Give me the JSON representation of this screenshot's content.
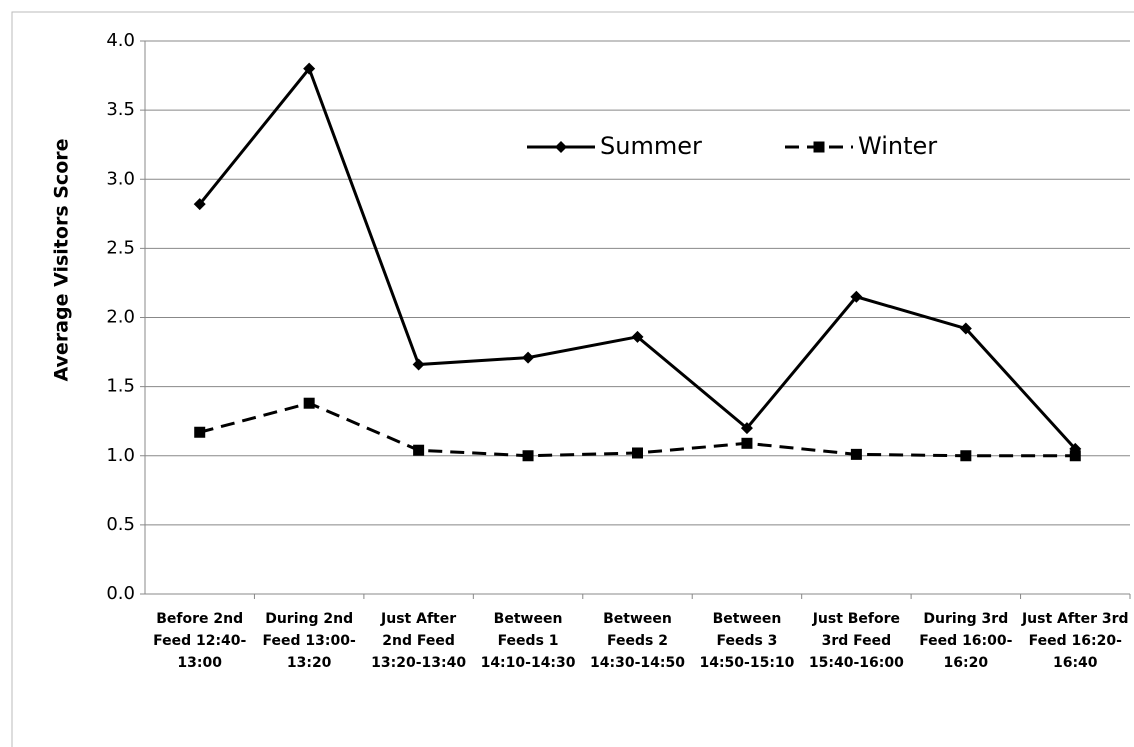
{
  "chart_data": {
    "type": "line",
    "y_label": "Average Visitors  Score",
    "categories": [
      "Before 2nd Feed 12:40-13:00",
      "During 2nd Feed 13:00-13:20",
      "Just After 2nd Feed 13:20-13:40",
      "Between Feeds 1 14:10-14:30",
      "Between Feeds 2 14:30-14:50",
      "Between Feeds 3 14:50-15:10",
      "Just Before 3rd Feed 15:40-16:00",
      "During 3rd Feed 16:00-16:20",
      "Just After 3rd Feed 16:20-16:40"
    ],
    "series": [
      {
        "name": "Summer",
        "color": "#000000",
        "marker": "diamond",
        "dash": "solid",
        "values": [
          2.82,
          3.8,
          1.66,
          1.71,
          1.86,
          1.2,
          2.15,
          1.92,
          1.05
        ]
      },
      {
        "name": "Winter",
        "color": "#000000",
        "marker": "square",
        "dash": "dashed",
        "values": [
          1.17,
          1.38,
          1.04,
          1.0,
          1.02,
          1.09,
          1.01,
          1.0,
          1.0
        ]
      }
    ],
    "ylim": [
      0,
      4
    ],
    "yticks": [
      {
        "value": 0,
        "label": "0.0"
      },
      {
        "value": 0.5,
        "label": "0.5"
      },
      {
        "value": 1,
        "label": "1.0"
      },
      {
        "value": 1.5,
        "label": "1.5"
      },
      {
        "value": 2,
        "label": "2.0"
      },
      {
        "value": 2.5,
        "label": "2.5"
      },
      {
        "value": 3,
        "label": "3.0"
      },
      {
        "value": 3.5,
        "label": "3.5"
      },
      {
        "value": 4,
        "label": "4.0"
      }
    ],
    "grid": true
  }
}
